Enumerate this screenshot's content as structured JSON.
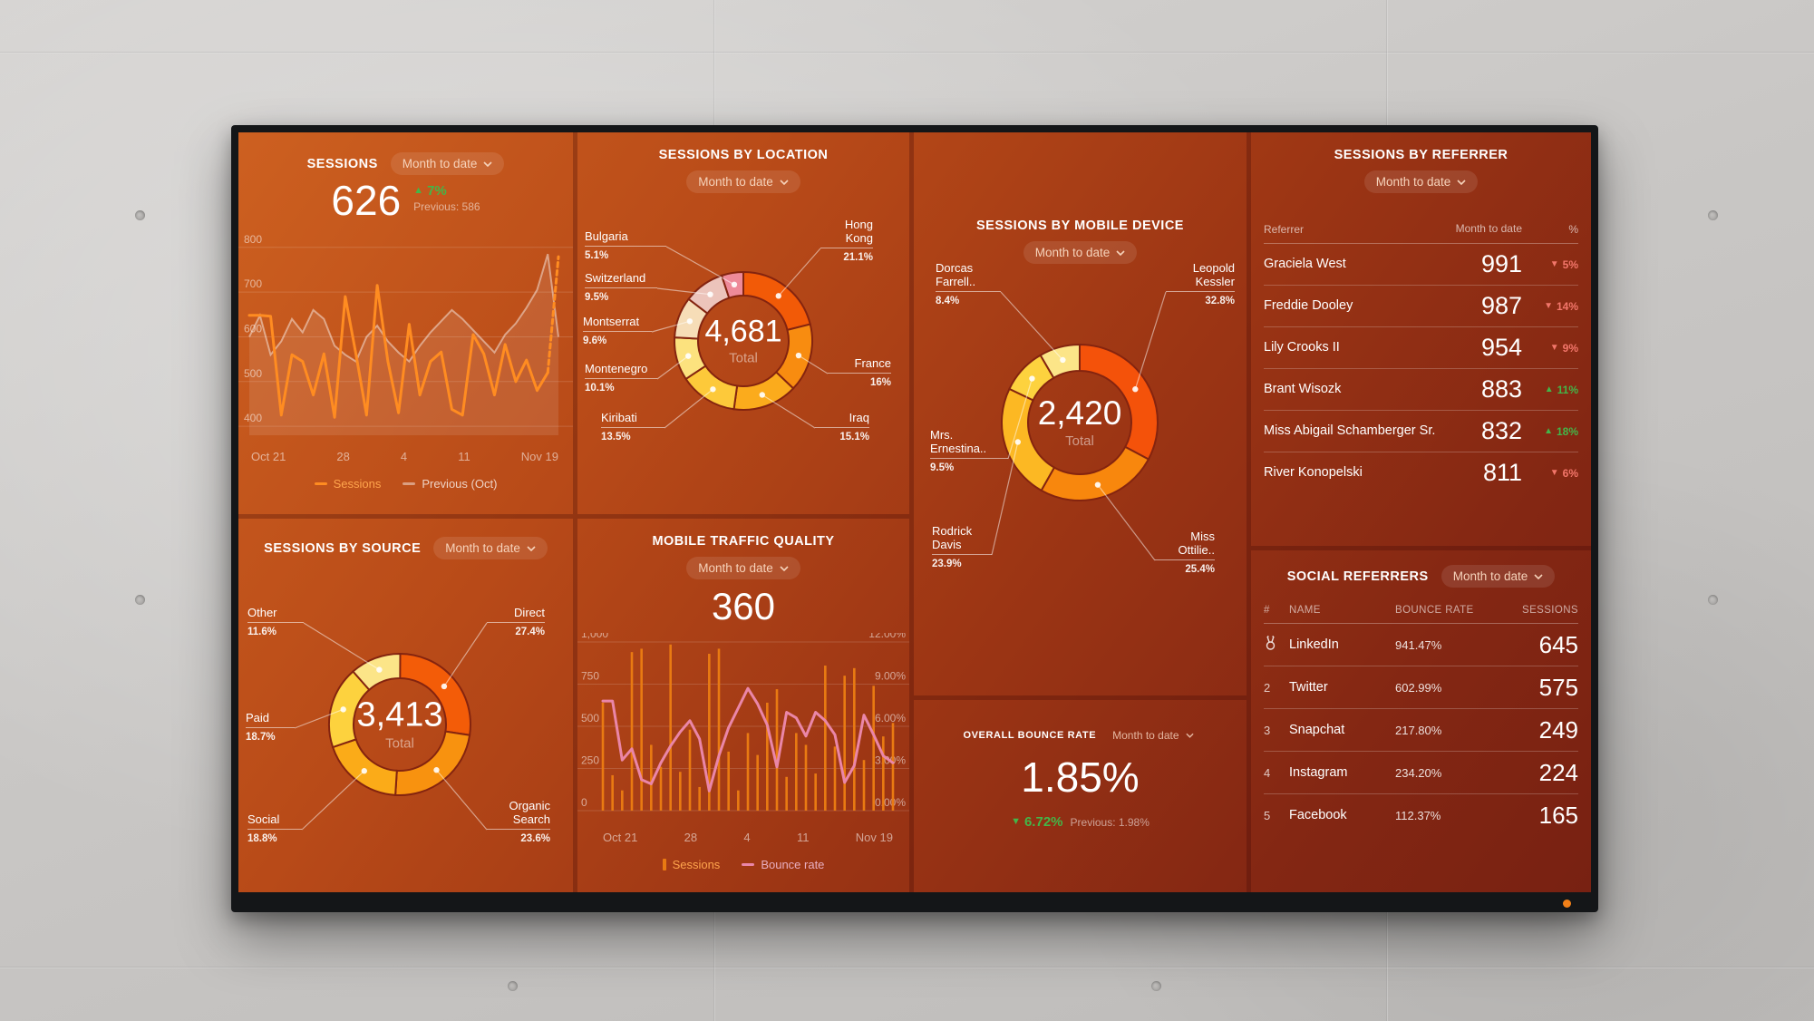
{
  "colors": {
    "green": "#43b649",
    "red": "#ef5b50",
    "orange_line": "#ff8c21",
    "bar_orange": "#e97a12",
    "pink_line": "#ea86a8",
    "screen_top": "#cd6020",
    "screen_bottom": "#782112"
  },
  "panels": {
    "sessions": {
      "title": "SESSIONS",
      "range": "Month to date",
      "value": "626",
      "delta": "7%",
      "previous": "Previous: 586",
      "chart_data": {
        "type": "line",
        "y_ticks": [
          "800",
          "700",
          "600",
          "500",
          "400"
        ],
        "ylim": [
          380,
          830
        ],
        "x_ticks": [
          "Oct 21",
          "28",
          "4",
          "11",
          "Nov 19"
        ],
        "series": [
          {
            "name": "Previous (Oct)",
            "color": "rgba(255,255,255,0.45)",
            "fill": "rgba(255,255,255,0.10)",
            "values": [
              600,
              648,
              560,
              590,
              640,
              610,
              660,
              640,
              580,
              560,
              545,
              600,
              625,
              590,
              565,
              545,
              580,
              610,
              635,
              660,
              640,
              615,
              590,
              565,
              605,
              630,
              665,
              705,
              785,
              600
            ]
          },
          {
            "name": "Sessions",
            "color": "#ff8c21",
            "dash_tail": true,
            "values": [
              648,
              648,
              646,
              425,
              560,
              545,
              470,
              562,
              420,
              690,
              562,
              425,
              715,
              545,
              430,
              628,
              470,
              545,
              566,
              438,
              425,
              605,
              562,
              470,
              583,
              500,
              548,
              480,
              520,
              779
            ]
          }
        ]
      }
    },
    "location": {
      "title": "SESSIONS BY LOCATION",
      "range": "Month to date",
      "chart_data": {
        "type": "donut",
        "total": "4,681",
        "total_label": "Total",
        "segments": [
          {
            "label": "Hong Kong",
            "pct": "21.1%",
            "value": 21.1,
            "color": "#f25a07"
          },
          {
            "label": "France",
            "pct": "16%",
            "value": 16,
            "color": "#f88c10"
          },
          {
            "label": "Iraq",
            "pct": "15.1%",
            "value": 15.1,
            "color": "#fbab1c"
          },
          {
            "label": "Kiribati",
            "pct": "13.5%",
            "value": 13.5,
            "color": "#fdc93a"
          },
          {
            "label": "Montenegro",
            "pct": "10.1%",
            "value": 10.1,
            "color": "#fce27e"
          },
          {
            "label": "Montserrat",
            "pct": "9.6%",
            "value": 9.6,
            "color": "#f6ddb7"
          },
          {
            "label": "Switzerland",
            "pct": "9.5%",
            "value": 9.5,
            "color": "#ecc4bb"
          },
          {
            "label": "Bulgaria",
            "pct": "5.1%",
            "value": 5.1,
            "color": "#ee8a99"
          }
        ]
      }
    },
    "device": {
      "title": "SESSIONS BY MOBILE DEVICE",
      "range": "Month to date",
      "chart_data": {
        "type": "donut",
        "total": "2,420",
        "total_label": "Total",
        "segments": [
          {
            "label": "Leopold Kessler",
            "pct": "32.8%",
            "value": 32.8,
            "color": "#f4520a"
          },
          {
            "label": "Miss Ottilie..",
            "pct": "25.4%",
            "value": 25.4,
            "color": "#f8870d"
          },
          {
            "label": "Rodrick Davis",
            "pct": "23.9%",
            "value": 23.9,
            "color": "#fcb823"
          },
          {
            "label": "Mrs. Ernestina..",
            "pct": "9.5%",
            "value": 9.5,
            "color": "#fdd23e"
          },
          {
            "label": "Dorcas Farrell..",
            "pct": "8.4%",
            "value": 8.4,
            "color": "#fce588"
          }
        ]
      }
    },
    "referrer": {
      "title": "SESSIONS BY REFERRER",
      "range": "Month to date",
      "headers": [
        "Referrer",
        "Month to date",
        "%"
      ],
      "rows": [
        {
          "name": "Graciela West",
          "value": "991",
          "dir": "down",
          "change": "5%"
        },
        {
          "name": "Freddie Dooley",
          "value": "987",
          "dir": "down",
          "change": "14%"
        },
        {
          "name": "Lily Crooks II",
          "value": "954",
          "dir": "down",
          "change": "9%"
        },
        {
          "name": "Brant Wisozk",
          "value": "883",
          "dir": "up",
          "change": "11%"
        },
        {
          "name": "Miss Abigail Schamberger Sr.",
          "value": "832",
          "dir": "up",
          "change": "18%"
        },
        {
          "name": "River Konopelski",
          "value": "811",
          "dir": "down",
          "change": "6%"
        }
      ]
    },
    "source": {
      "title": "SESSIONS BY SOURCE",
      "range": "Month to date",
      "chart_data": {
        "type": "donut",
        "total": "3,413",
        "total_label": "Total",
        "segments": [
          {
            "label": "Direct",
            "pct": "27.4%",
            "value": 27.4,
            "color": "#f35c08"
          },
          {
            "label": "Organic Search",
            "pct": "23.6%",
            "value": 23.6,
            "color": "#f8920f"
          },
          {
            "label": "Social",
            "pct": "18.8%",
            "value": 18.8,
            "color": "#fbab18"
          },
          {
            "label": "Paid",
            "pct": "18.7%",
            "value": 18.7,
            "color": "#fdd23e"
          },
          {
            "label": "Other",
            "pct": "11.6%",
            "value": 11.6,
            "color": "#fce588"
          }
        ]
      }
    },
    "mobile_quality": {
      "title": "MOBILE TRAFFIC QUALITY",
      "range": "Month to date",
      "value": "360",
      "chart_data": {
        "type": "bar+line",
        "left_ticks": [
          "1,000",
          "750",
          "500",
          "250",
          "0"
        ],
        "right_ticks": [
          "12.00%",
          "9.00%",
          "6.00%",
          "3.00%",
          "0.00%"
        ],
        "left_lim": [
          0,
          1000
        ],
        "right_lim": [
          0,
          12
        ],
        "x_ticks": [
          "Oct 21",
          "28",
          "4",
          "11",
          "Nov 19"
        ],
        "bars": {
          "name": "Sessions",
          "color": "#e97a12",
          "values": [
            640,
            210,
            120,
            940,
            960,
            390,
            260,
            985,
            230,
            480,
            140,
            930,
            960,
            350,
            120,
            460,
            330,
            640,
            720,
            200,
            460,
            390,
            220,
            860,
            380,
            800,
            845,
            300,
            740,
            440,
            520
          ]
        },
        "line": {
          "name": "Bounce rate",
          "color": "#ea86a8",
          "values": [
            7.8,
            7.8,
            3.6,
            4.4,
            2.2,
            1.9,
            3.4,
            4.6,
            5.6,
            6.4,
            5.1,
            1.4,
            3.9,
            5.9,
            7.3,
            8.7,
            7.6,
            6.1,
            3.1,
            7.0,
            6.6,
            5.3,
            7.0,
            6.4,
            5.4,
            2.0,
            3.2,
            6.8,
            5.4,
            3.9,
            3.4
          ]
        }
      }
    },
    "bounce": {
      "title": "OVERALL BOUNCE RATE",
      "range": "Month to date",
      "value": "1.85%",
      "delta": "6.72%",
      "previous": "Previous: 1.98%"
    },
    "social": {
      "title": "SOCIAL REFERRERS",
      "range": "Month to date",
      "headers": [
        "#",
        "NAME",
        "BOUNCE RATE",
        "SESSIONS"
      ],
      "rows": [
        {
          "rank": "1",
          "medal": true,
          "name": "LinkedIn",
          "bounce": "941.47%",
          "sessions": "645"
        },
        {
          "rank": "2",
          "medal": false,
          "name": "Twitter",
          "bounce": "602.99%",
          "sessions": "575"
        },
        {
          "rank": "3",
          "medal": false,
          "name": "Snapchat",
          "bounce": "217.80%",
          "sessions": "249"
        },
        {
          "rank": "4",
          "medal": false,
          "name": "Instagram",
          "bounce": "234.20%",
          "sessions": "224"
        },
        {
          "rank": "5",
          "medal": false,
          "name": "Facebook",
          "bounce": "112.37%",
          "sessions": "165"
        }
      ]
    }
  }
}
